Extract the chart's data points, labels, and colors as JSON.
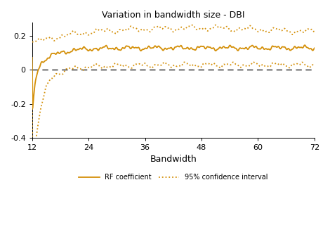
{
  "title": "Variation in bandwidth size - DBI",
  "xlabel": "Bandwidth",
  "x_min": 12,
  "x_max": 72,
  "x_ticks": [
    12,
    24,
    36,
    48,
    60,
    72
  ],
  "y_min": -0.4,
  "y_max": 0.28,
  "y_ticks": [
    -0.4,
    -0.2,
    0,
    0.2
  ],
  "line_color": "#D4900A",
  "ci_color": "#D4900A",
  "zero_line_color": "#222222",
  "legend_solid_label": "RF coefficient",
  "legend_dashed_label": "95% confidence interval"
}
